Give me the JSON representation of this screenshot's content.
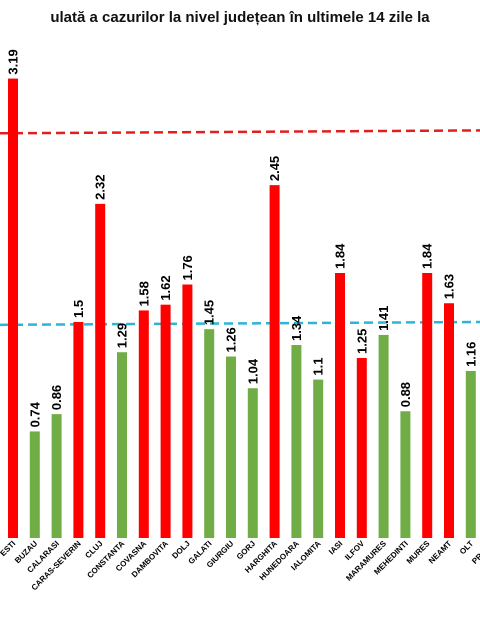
{
  "chart_data": {
    "type": "bar",
    "title": "ulată a cazurilor la nivel județean în ultimele 14 zile la",
    "categories": [
      "ESTI",
      "BUZAU",
      "CALARASI",
      "CARAS-SEVERIN",
      "CLUJ",
      "CONSTANTA",
      "COVASNA",
      "DAMBOVITA",
      "DOLJ",
      "GALATI",
      "GIURGIU",
      "GORJ",
      "HARGHITA",
      "HUNEDOARA",
      "IALOMITA",
      "IASI",
      "ILFOV",
      "MARAMURES",
      "MEHEDINTI",
      "MURES",
      "NEAMT",
      "OLT",
      "PRAHO"
    ],
    "values": [
      3.19,
      0.74,
      0.86,
      1.5,
      2.32,
      1.29,
      1.58,
      1.62,
      1.76,
      1.45,
      1.26,
      1.04,
      2.45,
      1.34,
      1.1,
      1.84,
      1.25,
      1.41,
      0.88,
      1.84,
      1.63,
      1.16,
      null
    ],
    "bar_colors": [
      "#ff0000",
      "#70ad47",
      "#70ad47",
      "#ff0000",
      "#ff0000",
      "#70ad47",
      "#ff0000",
      "#ff0000",
      "#ff0000",
      "#70ad47",
      "#70ad47",
      "#70ad47",
      "#ff0000",
      "#70ad47",
      "#70ad47",
      "#ff0000",
      "#ff0000",
      "#70ad47",
      "#70ad47",
      "#ff0000",
      "#ff0000",
      "#70ad47",
      "#70ad47"
    ],
    "reference_lines": [
      {
        "value_start": 2.81,
        "value_end": 2.83,
        "color": "#e02020",
        "style": "dashed"
      },
      {
        "value_start": 1.48,
        "value_end": 1.5,
        "color": "#2cb5d8",
        "style": "dashed"
      }
    ],
    "ylim": [
      0,
      3.68
    ],
    "xlabel": "",
    "ylabel": ""
  }
}
